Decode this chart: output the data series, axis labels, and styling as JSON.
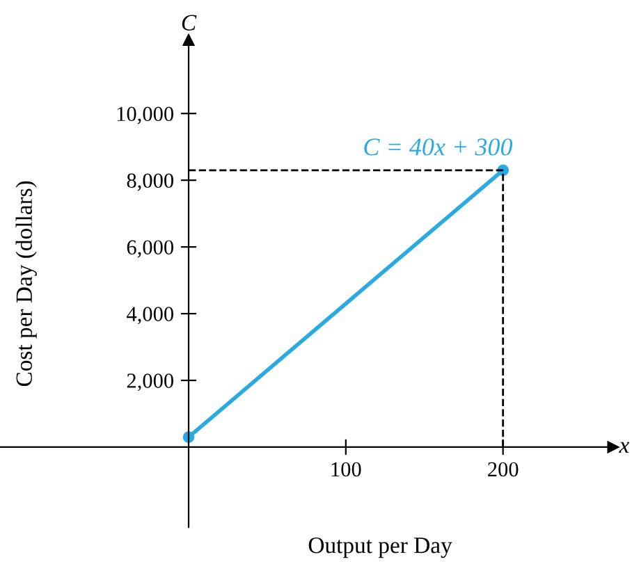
{
  "chart_data": {
    "type": "line",
    "xlabel": "Output per Day",
    "ylabel": "Cost per Day (dollars)",
    "x": [
      0,
      200
    ],
    "series": [
      {
        "color": "#29abe2",
        "values": [
          300,
          8300
        ]
      }
    ],
    "marker": "circle",
    "xlim": [
      -120,
      270
    ],
    "ylim": [
      -2400,
      12200
    ],
    "xticks": [
      100,
      200
    ],
    "yticks": [
      {
        "value": 2000,
        "label": "2,000"
      },
      {
        "value": 4000,
        "label": "4,000"
      },
      {
        "value": 6000,
        "label": "6,000"
      },
      {
        "value": 8000,
        "label": "8,000"
      },
      {
        "value": 10000,
        "label": "10,000"
      }
    ],
    "ref_lines": [
      {
        "axis": "x",
        "value": 200,
        "color": "#000000",
        "line_style": "dashed"
      },
      {
        "axis": "y",
        "value": 8300,
        "color": "#000000",
        "line_style": "dashed"
      }
    ],
    "annotations": [
      {
        "text": "C = 40x + 300",
        "x": 200,
        "y": 8300
      },
      "C",
      "x"
    ],
    "grid": false
  }
}
